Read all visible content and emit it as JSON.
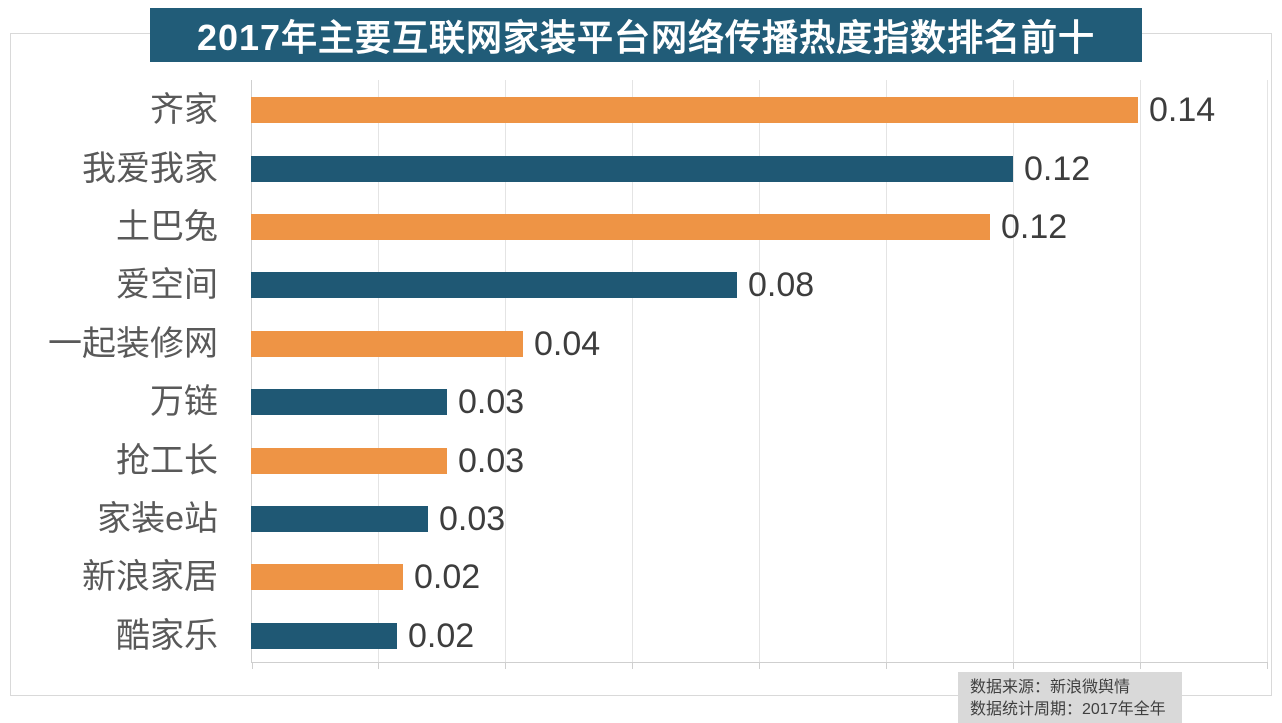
{
  "title": {
    "text": "2017年主要互联网家装平台网络传播热度指数排名前十",
    "bg": "#215c78",
    "color": "#ffffff"
  },
  "chart_data": {
    "type": "bar",
    "orientation": "horizontal",
    "title": "2017年主要互联网家装平台网络传播热度指数排名前十",
    "categories": [
      "齐家",
      "我爱我家",
      "土巴兔",
      "爱空间",
      "一起装修网",
      "万链",
      "抢工长",
      "家装e站",
      "新浪家居",
      "酷家乐"
    ],
    "values": [
      0.14,
      0.12,
      0.12,
      0.08,
      0.04,
      0.03,
      0.03,
      0.03,
      0.02,
      0.02
    ],
    "value_labels": [
      "0.14",
      "0.12",
      "0.12",
      "0.08",
      "0.04",
      "0.03",
      "0.03",
      "0.03",
      "0.02",
      "0.02"
    ],
    "values_precise": [
      0.1397,
      0.12,
      0.1163,
      0.0765,
      0.0428,
      0.0309,
      0.0309,
      0.0279,
      0.0239,
      0.023
    ],
    "bar_colors": [
      "#ee9445",
      "#1f5874",
      "#ee9445",
      "#1f5874",
      "#ee9445",
      "#1f5874",
      "#ee9445",
      "#1f5874",
      "#ee9445",
      "#1f5874"
    ],
    "xlabel": "",
    "ylabel": "",
    "xlim": [
      0,
      0.16
    ],
    "gridline_step": 0.02,
    "grid": "vertical-gridlines-only",
    "legend": "none",
    "axis_tick_labels": "none"
  },
  "footer": {
    "line1": "数据来源：新浪微舆情",
    "line2": "数据统计周期：2017年全年",
    "bg": "#d9d9d9",
    "text_color": "#404040"
  },
  "colors": {
    "bar_orange": "#ee9445",
    "bar_teal": "#1f5874",
    "title_bg": "#215c78",
    "category_label": "#595959",
    "value_label": "#3d3d3d",
    "gridline": "#e4e4e4",
    "axis_line": "#cfcfcf",
    "frame_border": "#d9d9d9"
  }
}
